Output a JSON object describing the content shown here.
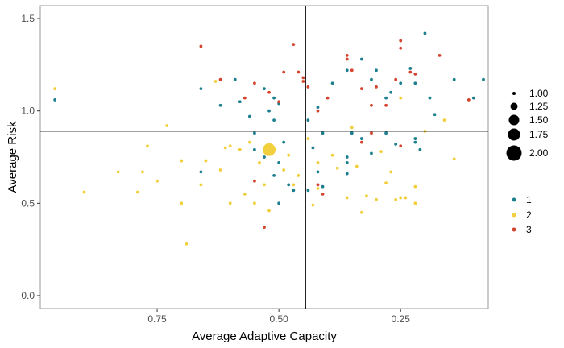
{
  "chart_data": {
    "type": "scatter",
    "title": "",
    "xlabel": "Average Adaptive Capacity",
    "ylabel": "Average Risk",
    "x_reversed": true,
    "xlim": [
      0.99,
      0.07
    ],
    "ylim": [
      -0.07,
      1.57
    ],
    "x_ticks": [
      0.75,
      0.5,
      0.25
    ],
    "x_tick_labels": [
      "0.75",
      "0.50",
      "0.25"
    ],
    "y_ticks": [
      0.0,
      0.5,
      1.0,
      1.5
    ],
    "y_tick_labels": [
      "0.0",
      "0.5",
      "1.0",
      "1.5"
    ],
    "grid": false,
    "reference_lines": {
      "vertical_x": 0.445,
      "horizontal_y": 0.89
    },
    "size_legend": {
      "entries": [
        "1.00",
        "1.25",
        "1.50",
        "1.75",
        "2.00"
      ],
      "values": [
        1.0,
        1.25,
        1.5,
        1.75,
        2.0
      ]
    },
    "color_legend": {
      "entries": [
        "1",
        "2",
        "3"
      ],
      "colors": [
        "#1b7f8e",
        "#f2cf3c",
        "#d4442f"
      ]
    },
    "series": [
      {
        "name": "1",
        "color": "#1b7f8e",
        "size": 1,
        "points": [
          [
            0.96,
            1.06
          ],
          [
            0.66,
            1.12
          ],
          [
            0.62,
            1.03
          ],
          [
            0.59,
            1.17
          ],
          [
            0.58,
            1.05
          ],
          [
            0.56,
            0.97
          ],
          [
            0.55,
            0.88
          ],
          [
            0.53,
            1.12
          ],
          [
            0.52,
            1.0
          ],
          [
            0.51,
            1.07
          ],
          [
            0.5,
            1.04
          ],
          [
            0.51,
            0.95
          ],
          [
            0.49,
            0.83
          ],
          [
            0.55,
            0.79
          ],
          [
            0.53,
            0.75
          ],
          [
            0.5,
            0.72
          ],
          [
            0.51,
            0.65
          ],
          [
            0.48,
            0.6
          ],
          [
            0.47,
            0.57
          ],
          [
            0.44,
            0.95
          ],
          [
            0.42,
            1.02
          ],
          [
            0.41,
            0.88
          ],
          [
            0.39,
            1.15
          ],
          [
            0.36,
            1.22
          ],
          [
            0.33,
            1.28
          ],
          [
            0.31,
            1.17
          ],
          [
            0.3,
            1.22
          ],
          [
            0.28,
            1.07
          ],
          [
            0.27,
            1.1
          ],
          [
            0.25,
            1.15
          ],
          [
            0.23,
            1.23
          ],
          [
            0.22,
            1.15
          ],
          [
            0.19,
            1.07
          ],
          [
            0.18,
            0.98
          ],
          [
            0.2,
            1.42
          ],
          [
            0.14,
            1.17
          ],
          [
            0.08,
            1.17
          ],
          [
            0.1,
            1.07
          ],
          [
            0.35,
            0.88
          ],
          [
            0.36,
            0.75
          ],
          [
            0.36,
            0.66
          ],
          [
            0.33,
            0.85
          ],
          [
            0.31,
            0.77
          ],
          [
            0.28,
            0.88
          ],
          [
            0.26,
            0.82
          ],
          [
            0.22,
            0.83
          ],
          [
            0.21,
            0.79
          ],
          [
            0.43,
            0.8
          ],
          [
            0.42,
            0.67
          ],
          [
            0.41,
            0.59
          ],
          [
            0.36,
            0.72
          ],
          [
            0.66,
            0.67
          ],
          [
            0.5,
            0.5
          ],
          [
            0.47,
            0.57
          ],
          [
            0.44,
            0.57
          ],
          [
            0.22,
            0.85
          ]
        ]
      },
      {
        "name": "2",
        "color": "#f2cf3c",
        "size": 1,
        "points": [
          [
            0.96,
            1.12
          ],
          [
            0.9,
            0.56
          ],
          [
            0.83,
            0.67
          ],
          [
            0.79,
            0.56
          ],
          [
            0.78,
            0.67
          ],
          [
            0.77,
            0.81
          ],
          [
            0.75,
            0.62
          ],
          [
            0.73,
            0.92
          ],
          [
            0.7,
            0.73
          ],
          [
            0.7,
            0.5
          ],
          [
            0.66,
            0.6
          ],
          [
            0.63,
            1.16
          ],
          [
            0.62,
            0.68
          ],
          [
            0.6,
            0.81
          ],
          [
            0.58,
            0.79
          ],
          [
            0.6,
            0.5
          ],
          [
            0.57,
            0.55
          ],
          [
            0.55,
            0.5
          ],
          [
            0.53,
            0.6
          ],
          [
            0.52,
            0.46
          ],
          [
            0.51,
            0.79
          ],
          [
            0.49,
            0.68
          ],
          [
            0.47,
            0.6
          ],
          [
            0.48,
            0.76
          ],
          [
            0.46,
            0.65
          ],
          [
            0.43,
            0.49
          ],
          [
            0.42,
            0.58
          ],
          [
            0.38,
            0.69
          ],
          [
            0.36,
            0.53
          ],
          [
            0.33,
            0.45
          ],
          [
            0.32,
            0.54
          ],
          [
            0.3,
            0.52
          ],
          [
            0.29,
            0.78
          ],
          [
            0.27,
            0.67
          ],
          [
            0.26,
            0.52
          ],
          [
            0.25,
            1.07
          ],
          [
            0.24,
            0.53
          ],
          [
            0.22,
            0.59
          ],
          [
            0.22,
            0.5
          ],
          [
            0.2,
            0.89
          ],
          [
            0.16,
            0.95
          ],
          [
            0.14,
            0.74
          ],
          [
            0.69,
            0.28
          ],
          [
            0.65,
            0.73
          ],
          [
            0.61,
            0.8
          ],
          [
            0.56,
            0.83
          ],
          [
            0.54,
            0.72
          ],
          [
            0.44,
            0.85
          ],
          [
            0.39,
            0.76
          ],
          [
            0.34,
            0.7
          ],
          [
            0.28,
            0.61
          ],
          [
            0.25,
            0.53
          ],
          [
            0.42,
            0.72
          ],
          [
            0.35,
            0.91
          ]
        ]
      },
      {
        "name": "3",
        "color": "#d4442f",
        "size": 1,
        "points": [
          [
            0.66,
            1.35
          ],
          [
            0.62,
            1.17
          ],
          [
            0.57,
            1.07
          ],
          [
            0.55,
            1.15
          ],
          [
            0.52,
            1.1
          ],
          [
            0.5,
            1.05
          ],
          [
            0.49,
            1.21
          ],
          [
            0.47,
            1.36
          ],
          [
            0.46,
            1.21
          ],
          [
            0.45,
            1.18
          ],
          [
            0.44,
            1.13
          ],
          [
            0.42,
            1.0
          ],
          [
            0.4,
            1.07
          ],
          [
            0.36,
            1.3
          ],
          [
            0.35,
            1.22
          ],
          [
            0.33,
            1.12
          ],
          [
            0.31,
            1.03
          ],
          [
            0.3,
            1.13
          ],
          [
            0.28,
            1.03
          ],
          [
            0.26,
            1.17
          ],
          [
            0.25,
            1.38
          ],
          [
            0.25,
            1.34
          ],
          [
            0.23,
            1.21
          ],
          [
            0.22,
            1.2
          ],
          [
            0.17,
            1.3
          ],
          [
            0.11,
            1.06
          ],
          [
            0.31,
            0.88
          ],
          [
            0.33,
            0.83
          ],
          [
            0.25,
            0.81
          ],
          [
            0.42,
            0.6
          ],
          [
            0.41,
            0.55
          ],
          [
            0.45,
            1.16
          ],
          [
            0.53,
            0.37
          ],
          [
            0.55,
            0.62
          ],
          [
            0.36,
            1.28
          ]
        ]
      },
      {
        "name": "2",
        "color": "#f2cf3c",
        "size": 2,
        "points": [
          [
            0.52,
            0.79
          ]
        ]
      }
    ]
  }
}
